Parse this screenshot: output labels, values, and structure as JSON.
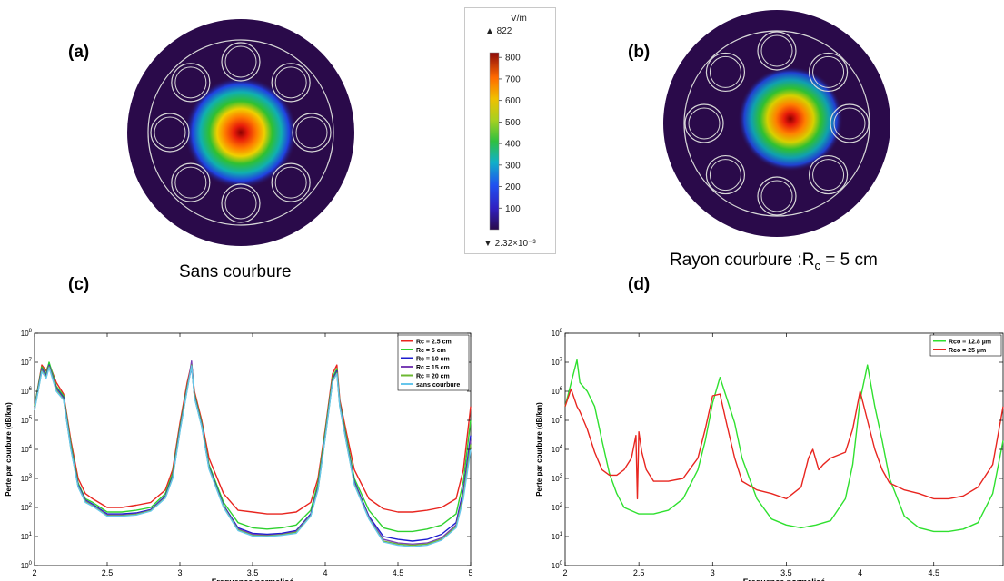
{
  "panels": {
    "a": {
      "label": "(a)",
      "caption": "Sans courbure"
    },
    "b": {
      "label": "(b)",
      "caption_main": "Rayon courbure :R",
      "caption_sub": "c",
      "caption_rest": " = 5 cm"
    },
    "c": {
      "label": "(c)"
    },
    "d": {
      "label": "(d)"
    }
  },
  "colorbar": {
    "unit": "V/m",
    "max_label": "▲ 822",
    "min_label": "▼ 2.32×10⁻³",
    "ticks": [
      "800",
      "700",
      "600",
      "500",
      "400",
      "300",
      "200",
      "100"
    ],
    "tick_values": [
      800,
      700,
      600,
      500,
      400,
      300,
      200,
      100
    ],
    "range": [
      0.00232,
      822
    ]
  },
  "colors": {
    "fiber_bg": "#2a0a4a",
    "fiber_outline": "#d8d8d8"
  },
  "chart_data": [
    {
      "type": "line",
      "xlabel": "Frequence normalisé",
      "ylabel": "Perte par courbure (dB/km)",
      "xlim": [
        2,
        5
      ],
      "ylim": [
        1,
        100000000
      ],
      "yscale": "log",
      "xticks": [
        "2",
        "2.5",
        "3",
        "3.5",
        "4",
        "4.5",
        "5"
      ],
      "yticks": [
        "10^0",
        "10^1",
        "10^2",
        "10^3",
        "10^4",
        "10^5",
        "10^6",
        "10^7",
        "10^8"
      ],
      "legend_position": "top-right",
      "series": [
        {
          "name": "Rc = 2.5 cm",
          "color": "#e8251f",
          "x": [
            2.0,
            2.05,
            2.08,
            2.1,
            2.15,
            2.2,
            2.25,
            2.3,
            2.35,
            2.4,
            2.5,
            2.6,
            2.7,
            2.8,
            2.9,
            2.95,
            3.0,
            3.05,
            3.08,
            3.1,
            3.15,
            3.2,
            3.3,
            3.4,
            3.5,
            3.6,
            3.7,
            3.8,
            3.9,
            3.95,
            4.0,
            4.05,
            4.08,
            4.1,
            4.15,
            4.2,
            4.3,
            4.4,
            4.5,
            4.6,
            4.7,
            4.8,
            4.9,
            4.95,
            5.0
          ],
          "y": [
            300000,
            8000000,
            5000000,
            9000000,
            2000000,
            800000,
            20000,
            1000,
            300,
            200,
            100,
            100,
            120,
            150,
            400,
            2000,
            80000,
            2000000,
            9000000,
            1000000,
            100000,
            5000,
            300,
            80,
            70,
            60,
            60,
            70,
            150,
            1000,
            50000,
            4000000,
            8000000,
            500000,
            30000,
            2000,
            200,
            90,
            70,
            70,
            80,
            100,
            200,
            2000,
            300000
          ]
        },
        {
          "name": "Rc = 5 cm",
          "color": "#2fd12f",
          "x": [
            2.0,
            2.05,
            2.08,
            2.1,
            2.15,
            2.2,
            2.25,
            2.3,
            2.35,
            2.4,
            2.5,
            2.6,
            2.7,
            2.8,
            2.9,
            2.95,
            3.0,
            3.05,
            3.08,
            3.1,
            3.15,
            3.2,
            3.3,
            3.4,
            3.5,
            3.6,
            3.7,
            3.8,
            3.9,
            3.95,
            4.0,
            4.05,
            4.08,
            4.1,
            4.15,
            4.2,
            4.3,
            4.4,
            4.5,
            4.6,
            4.7,
            4.8,
            4.9,
            4.95,
            5.0
          ],
          "y": [
            300000,
            7000000,
            4000000,
            10000000,
            1500000,
            700000,
            15000,
            700,
            200,
            150,
            70,
            70,
            80,
            100,
            300,
            1500,
            60000,
            1500000,
            8000000,
            800000,
            80000,
            3000,
            150,
            30,
            20,
            18,
            20,
            25,
            80,
            700,
            40000,
            3000000,
            6000000,
            400000,
            20000,
            1000,
            80,
            20,
            15,
            15,
            18,
            25,
            60,
            800,
            100000
          ]
        },
        {
          "name": "Rc = 10 cm",
          "color": "#1c1ccf",
          "x": [
            2.0,
            2.05,
            2.08,
            2.1,
            2.15,
            2.2,
            2.25,
            2.3,
            2.35,
            2.4,
            2.5,
            2.6,
            2.7,
            2.8,
            2.9,
            2.95,
            3.0,
            3.05,
            3.08,
            3.1,
            3.15,
            3.2,
            3.3,
            3.4,
            3.5,
            3.6,
            3.7,
            3.8,
            3.9,
            3.95,
            4.0,
            4.05,
            4.08,
            4.1,
            4.15,
            4.2,
            4.3,
            4.4,
            4.5,
            4.6,
            4.7,
            4.8,
            4.9,
            4.95,
            5.0
          ],
          "y": [
            250000,
            6000000,
            3500000,
            8000000,
            1300000,
            600000,
            12000,
            600,
            180,
            130,
            60,
            60,
            65,
            85,
            250,
            1200,
            50000,
            1300000,
            7000000,
            700000,
            70000,
            2500,
            120,
            20,
            13,
            12,
            13,
            16,
            60,
            500,
            30000,
            2500000,
            5000000,
            350000,
            15000,
            800,
            50,
            10,
            8,
            7,
            8,
            12,
            30,
            400,
            30000
          ]
        },
        {
          "name": "Rc = 15 cm",
          "color": "#7a3fb5",
          "x": [
            2.0,
            2.05,
            2.08,
            2.1,
            2.15,
            2.2,
            2.25,
            2.3,
            2.35,
            2.4,
            2.5,
            2.6,
            2.7,
            2.8,
            2.9,
            2.95,
            3.0,
            3.05,
            3.08,
            3.1,
            3.15,
            3.2,
            3.3,
            3.4,
            3.5,
            3.6,
            3.7,
            3.8,
            3.9,
            3.95,
            4.0,
            4.05,
            4.08,
            4.1,
            4.15,
            4.2,
            4.3,
            4.4,
            4.5,
            4.6,
            4.7,
            4.8,
            4.9,
            4.95,
            5.0
          ],
          "y": [
            240000,
            5500000,
            3200000,
            7500000,
            1200000,
            550000,
            11000,
            550,
            170,
            120,
            55,
            55,
            60,
            80,
            230,
            1100,
            45000,
            1200000,
            11000000,
            650000,
            65000,
            2300,
            110,
            18,
            12,
            11,
            12,
            15,
            55,
            450,
            28000,
            2300000,
            4500000,
            320000,
            14000,
            700,
            45,
            8,
            6,
            5.5,
            6,
            9,
            25,
            300,
            20000
          ]
        },
        {
          "name": "Rc = 20 cm",
          "color": "#6cb832",
          "x": [
            2.0,
            2.05,
            2.08,
            2.1,
            2.15,
            2.2,
            2.25,
            2.3,
            2.35,
            2.4,
            2.5,
            2.6,
            2.7,
            2.8,
            2.9,
            2.95,
            3.0,
            3.05,
            3.08,
            3.1,
            3.15,
            3.2,
            3.3,
            3.4,
            3.5,
            3.6,
            3.7,
            3.8,
            3.9,
            3.95,
            4.0,
            4.05,
            4.08,
            4.1,
            4.15,
            4.2,
            4.3,
            4.4,
            4.5,
            4.6,
            4.7,
            4.8,
            4.9,
            4.95,
            5.0
          ],
          "y": [
            230000,
            5000000,
            3000000,
            7000000,
            1100000,
            520000,
            10500,
            520,
            160,
            115,
            52,
            52,
            58,
            78,
            220,
            1050,
            43000,
            1150000,
            8000000,
            620000,
            62000,
            2200,
            105,
            17,
            11,
            10.5,
            11.5,
            14,
            52,
            420,
            26000,
            2200000,
            4300000,
            300000,
            13000,
            650,
            42,
            7,
            5.5,
            5,
            5.5,
            8,
            22,
            250,
            15000
          ]
        },
        {
          "name": "sans courbure",
          "color": "#66c6ec",
          "x": [
            2.0,
            2.05,
            2.08,
            2.1,
            2.15,
            2.2,
            2.25,
            2.3,
            2.35,
            2.4,
            2.5,
            2.6,
            2.7,
            2.8,
            2.9,
            2.95,
            3.0,
            3.05,
            3.08,
            3.1,
            3.15,
            3.2,
            3.3,
            3.4,
            3.5,
            3.6,
            3.7,
            3.8,
            3.9,
            3.95,
            4.0,
            4.05,
            4.08,
            4.1,
            4.15,
            4.2,
            4.3,
            4.4,
            4.5,
            4.6,
            4.7,
            4.8,
            4.9,
            4.95,
            5.0
          ],
          "y": [
            220000,
            4800000,
            2800000,
            6500000,
            1000000,
            500000,
            10000,
            500,
            150,
            110,
            50,
            50,
            55,
            75,
            210,
            1000,
            40000,
            1100000,
            7500000,
            600000,
            60000,
            2100,
            100,
            16,
            10.5,
            10,
            11,
            13,
            50,
            400,
            25000,
            2100000,
            4000000,
            290000,
            12500,
            600,
            40,
            6.5,
            5,
            4.5,
            5,
            7.5,
            20,
            200,
            10000
          ]
        }
      ]
    },
    {
      "type": "line",
      "xlabel": "Frequence normalisé",
      "ylabel": "Perte par courbure (dB/km)",
      "xlim": [
        2,
        4.97
      ],
      "ylim": [
        1,
        100000000
      ],
      "yscale": "log",
      "xticks": [
        "2",
        "2.5",
        "3",
        "3.5",
        "4",
        "4.5"
      ],
      "yticks": [
        "10^0",
        "10^1",
        "10^2",
        "10^3",
        "10^4",
        "10^5",
        "10^6",
        "10^7",
        "10^8"
      ],
      "legend_position": "top-right",
      "series": [
        {
          "name": "Rco = 12.8 µm",
          "color": "#2fe02f",
          "x": [
            2.0,
            2.05,
            2.08,
            2.1,
            2.15,
            2.2,
            2.25,
            2.3,
            2.35,
            2.4,
            2.5,
            2.6,
            2.7,
            2.8,
            2.9,
            2.95,
            3.0,
            3.05,
            3.1,
            3.15,
            3.2,
            3.3,
            3.4,
            3.5,
            3.6,
            3.7,
            3.8,
            3.9,
            3.95,
            4.0,
            4.05,
            4.1,
            4.15,
            4.2,
            4.3,
            4.4,
            4.5,
            4.6,
            4.7,
            4.8,
            4.9,
            4.97
          ],
          "y": [
            300000,
            3000000,
            12000000,
            2000000,
            1000000,
            300000,
            20000,
            1500,
            300,
            100,
            60,
            60,
            80,
            200,
            2000,
            20000,
            400000,
            3000000,
            500000,
            80000,
            5000,
            200,
            40,
            25,
            20,
            25,
            35,
            200,
            3000,
            500000,
            8000000,
            300000,
            20000,
            1000,
            50,
            20,
            15,
            15,
            18,
            30,
            300,
            20000
          ]
        },
        {
          "name": "Rco = 25 µm",
          "color": "#e8251f",
          "x": [
            2.0,
            2.04,
            2.08,
            2.1,
            2.15,
            2.2,
            2.25,
            2.3,
            2.35,
            2.4,
            2.45,
            2.48,
            2.49,
            2.5,
            2.52,
            2.55,
            2.6,
            2.7,
            2.8,
            2.9,
            2.95,
            3.0,
            3.05,
            3.1,
            3.15,
            3.2,
            3.3,
            3.4,
            3.5,
            3.6,
            3.65,
            3.68,
            3.72,
            3.75,
            3.8,
            3.9,
            3.95,
            4.0,
            4.05,
            4.1,
            4.15,
            4.2,
            4.3,
            4.4,
            4.5,
            4.6,
            4.7,
            4.8,
            4.9,
            4.97
          ],
          "y": [
            300000,
            1200000,
            300000,
            200000,
            50000,
            8000,
            2000,
            1300,
            1300,
            2000,
            5000,
            30000,
            200,
            40000,
            8000,
            2000,
            800,
            800,
            1000,
            5000,
            50000,
            700000,
            800000,
            60000,
            5000,
            800,
            400,
            300,
            200,
            500,
            5000,
            10000,
            2000,
            3000,
            5000,
            8000,
            50000,
            1000000,
            100000,
            10000,
            2000,
            700,
            400,
            300,
            200,
            200,
            250,
            500,
            3000,
            300000
          ]
        }
      ]
    }
  ]
}
